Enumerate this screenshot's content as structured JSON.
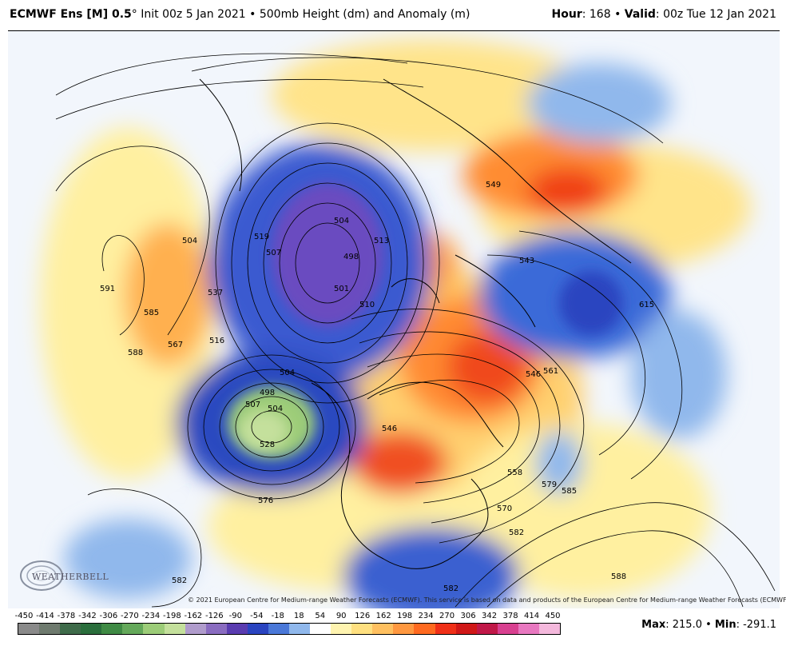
{
  "header": {
    "model_bold": "ECMWF Ens [M] 0.5",
    "model_deg": "°",
    "init": " Init 00z 5 Jan 2021 • 500mb Height (dm) and Anomaly (m)",
    "hour_label": "Hour",
    "hour_value": ": 168 • ",
    "valid_label": "Valid",
    "valid_value": ": 00z Tue 12 Jan 2021"
  },
  "copyright": "© 2021 European Centre for Medium-range Weather Forecasts (ECMWF). This service is based on data and products of the European Centre for Medium-range Weather Forecasts (ECMWF).",
  "logo": {
    "text": "WEATHERBELL",
    "icon": "weatherbell-swirl-logo"
  },
  "colorbar": {
    "labels": [
      "-450",
      "-414",
      "-378",
      "-342",
      "-306",
      "-270",
      "-234",
      "-198",
      "-162",
      "-126",
      "-90",
      "-54",
      "-18",
      "18",
      "54",
      "90",
      "126",
      "162",
      "198",
      "234",
      "270",
      "306",
      "342",
      "378",
      "414",
      "450"
    ],
    "colors": [
      "#8a8a8a",
      "#6e7a6e",
      "#3f6b4a",
      "#2a6e3c",
      "#3f8a44",
      "#64a85a",
      "#9ccc78",
      "#c4e09c",
      "#b09ccc",
      "#8a6cc0",
      "#5a3cb0",
      "#2a44c0",
      "#4a78d8",
      "#90b8ec",
      "#ffffff",
      "#fff4b0",
      "#ffe080",
      "#ffc060",
      "#ff9840",
      "#ff6a20",
      "#f03018",
      "#d01818",
      "#c01848",
      "#d84090",
      "#e878c0",
      "#f4b8dc"
    ]
  },
  "maxmin": {
    "max_label": "Max",
    "max_value": ": 215.0 • ",
    "min_label": "Min",
    "min_value": ": -291.1"
  },
  "contour_labels": [
    "591",
    "585",
    "588",
    "567",
    "537",
    "504",
    "519",
    "507",
    "504",
    "498",
    "501",
    "510",
    "513",
    "516",
    "504",
    "498",
    "507",
    "504",
    "528",
    "546",
    "546",
    "561",
    "576",
    "582",
    "570",
    "582",
    "558",
    "579",
    "585",
    "588",
    "549",
    "543",
    "582",
    "615"
  ]
}
